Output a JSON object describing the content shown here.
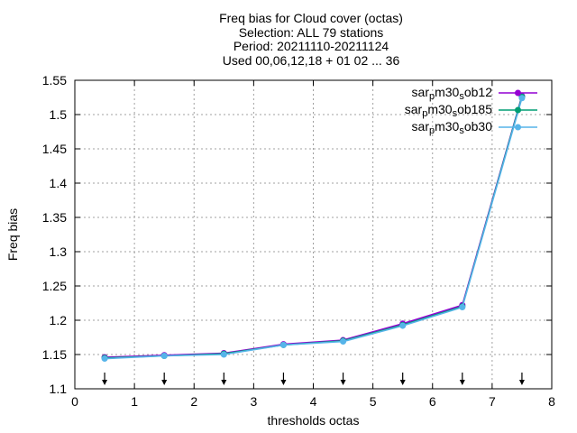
{
  "chart_data": {
    "type": "line",
    "title": [
      "Freq bias  for Cloud cover (octas)",
      "Selection: ALL     79 stations",
      "Period: 20211110-20211124",
      "Used 00,06,12,18 + 01 02 ... 36"
    ],
    "xlabel": "thresholds octas",
    "ylabel": "Freq bias",
    "xlim": [
      0,
      8
    ],
    "ylim": [
      1.1,
      1.55
    ],
    "xticks": [
      "0",
      "1",
      "2",
      "3",
      "4",
      "5",
      "6",
      "7",
      "8"
    ],
    "yticks": [
      "1.1",
      "1.15",
      "1.2",
      "1.25",
      "1.3",
      "1.35",
      "1.4",
      "1.45",
      "1.5",
      "1.55"
    ],
    "grid": true,
    "legend_position": "top-right",
    "x": [
      0.5,
      1.5,
      2.5,
      3.5,
      4.5,
      5.5,
      6.5,
      7.5
    ],
    "series": [
      {
        "name": "sar_p m30_s ob12",
        "name_parts": [
          "sar",
          "p",
          "m30",
          "s",
          "ob12"
        ],
        "color": "#9400d3",
        "values": [
          1.146,
          1.149,
          1.152,
          1.165,
          1.171,
          1.195,
          1.222,
          1.527
        ]
      },
      {
        "name": "sar_p m30_s ob185",
        "name_parts": [
          "sar",
          "p",
          "m30",
          "s",
          "ob185"
        ],
        "color": "#009e73",
        "values": [
          1.145,
          1.148,
          1.151,
          1.164,
          1.17,
          1.193,
          1.22,
          1.526
        ]
      },
      {
        "name": "sar_p m30_s ob30",
        "name_parts": [
          "sar",
          "p",
          "m30",
          "s",
          "ob30"
        ],
        "color": "#56b4e9",
        "values": [
          1.144,
          1.148,
          1.15,
          1.164,
          1.169,
          1.192,
          1.219,
          1.524
        ]
      }
    ],
    "arrows_at_x": [
      0.5,
      1.5,
      2.5,
      3.5,
      4.5,
      5.5,
      6.5,
      7.5
    ]
  }
}
